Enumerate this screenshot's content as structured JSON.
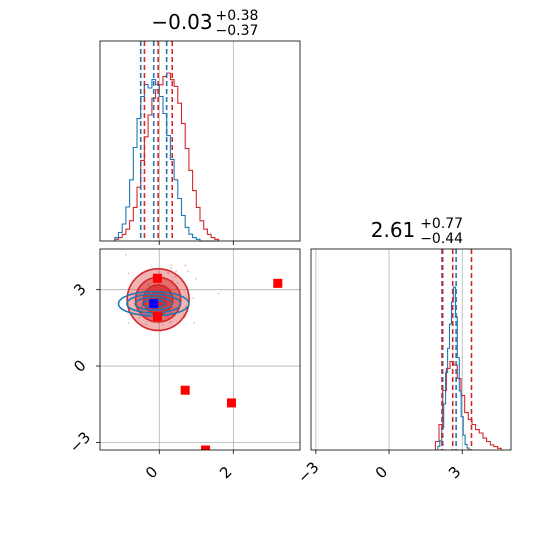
{
  "chart_data": {
    "type": "corner",
    "colors": {
      "red": "#d62728",
      "blue": "#1f77b4",
      "grid": "#b0b0b0",
      "marker_red": "#ff0000",
      "marker_blue": "#0000ff"
    },
    "panels": [
      {
        "id": "hist-param-1",
        "type": "histogram",
        "title": {
          "value": "−0.03",
          "sup": "+0.38",
          "sub": "−0.37"
        },
        "xlim": [
          -1.6,
          3.8
        ],
        "x_ticks": [
          0,
          2
        ],
        "grid": true,
        "red_quantiles": [
          -0.4,
          -0.03,
          0.35
        ],
        "blue_quantiles": [
          -0.5,
          -0.15,
          0.2
        ],
        "red_hist": {
          "start": -1.2,
          "step": 0.1,
          "heights": [
            0.01,
            0.02,
            0.04,
            0.07,
            0.12,
            0.2,
            0.32,
            0.48,
            0.62,
            0.75,
            0.85,
            0.9,
            0.93,
            0.98,
            1.0,
            0.96,
            0.92,
            0.82,
            0.7,
            0.55,
            0.42,
            0.3,
            0.2,
            0.12,
            0.07,
            0.04,
            0.02,
            0.01
          ]
        },
        "blue_hist": {
          "start": -1.2,
          "step": 0.1,
          "heights": [
            0.02,
            0.05,
            0.1,
            0.2,
            0.36,
            0.55,
            0.72,
            0.85,
            0.92,
            0.9,
            0.95,
            0.92,
            0.85,
            0.75,
            0.62,
            0.48,
            0.36,
            0.25,
            0.15,
            0.08,
            0.04,
            0.02,
            0.01,
            0,
            0,
            0,
            0,
            0
          ]
        }
      },
      {
        "id": "hist-param-2",
        "type": "histogram",
        "title": {
          "value": "2.61",
          "sup": "+0.77",
          "sub": "−0.44"
        },
        "xlim": [
          -3.2,
          5.0
        ],
        "x_ticks": [
          -3,
          0,
          3
        ],
        "x_tick_labels": [
          "−3",
          "0",
          "3"
        ],
        "grid": true,
        "red_quantiles": [
          2.17,
          2.61,
          3.38
        ],
        "blue_quantiles": [
          2.2,
          2.75
        ],
        "red_hist": {
          "start": 1.9,
          "step": 0.15,
          "heights": [
            0.05,
            0.15,
            0.35,
            0.48,
            0.52,
            0.5,
            0.42,
            0.32,
            0.22,
            0.18,
            0.15,
            0.12,
            0.1,
            0.07,
            0.05,
            0.03,
            0.02,
            0.01
          ]
        },
        "blue_hist": {
          "start": 2.0,
          "step": 0.08,
          "heights": [
            0.02,
            0.05,
            0.12,
            0.25,
            0.42,
            0.55,
            0.68,
            0.8,
            0.88,
            0.72,
            0.5,
            0.32,
            0.18,
            0.08,
            0.03,
            0.01
          ]
        }
      },
      {
        "id": "joint-2d",
        "type": "contour",
        "xlim": [
          -1.6,
          3.8
        ],
        "ylim": [
          -3.3,
          4.6
        ],
        "x_ticks": [
          0,
          2
        ],
        "y_ticks": [
          -3,
          0,
          3
        ],
        "y_tick_labels": [
          "−3",
          "0",
          "3"
        ],
        "grid": true,
        "red_center": [
          -0.03,
          2.61
        ],
        "red_sigma": [
          0.38,
          0.55
        ],
        "blue_center": [
          -0.15,
          2.45
        ],
        "blue_sigma": [
          0.5,
          0.25
        ],
        "red_markers": [
          [
            -0.05,
            3.45
          ],
          [
            3.2,
            3.25
          ],
          [
            -0.05,
            1.95
          ],
          [
            0.7,
            -0.95
          ],
          [
            1.95,
            -1.45
          ],
          [
            1.25,
            -3.3
          ]
        ],
        "blue_marker": [
          -0.15,
          2.45
        ]
      }
    ]
  }
}
